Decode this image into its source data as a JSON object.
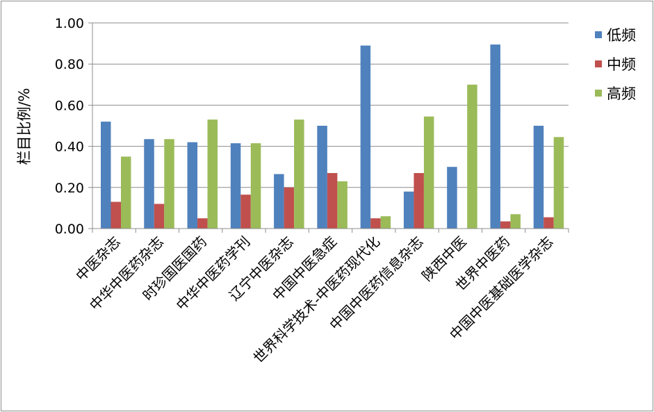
{
  "chart_data": {
    "type": "bar",
    "ylabel": "栏目比例/%",
    "ylim": [
      0,
      1
    ],
    "yticks": [
      "0.00",
      "0.20",
      "0.40",
      "0.60",
      "0.80",
      "1.00"
    ],
    "ytick_values": [
      0,
      0.2,
      0.4,
      0.6,
      0.8,
      1.0
    ],
    "grid": true,
    "legend_position": "top-right",
    "categories": [
      "中医杂志",
      "中华中医药杂志",
      "时珍国医国药",
      "中华中医药学刊",
      "辽宁中医杂志",
      "中国中医急症",
      "世界科学技术-中医药现代化",
      "中国中医药信息杂志",
      "陕西中医",
      "世界中医药",
      "中国中医基础医学杂志"
    ],
    "series": [
      {
        "name": "低频",
        "color": "#4f81bd",
        "values": [
          0.52,
          0.435,
          0.42,
          0.415,
          0.265,
          0.5,
          0.89,
          0.18,
          0.3,
          0.895,
          0.5
        ]
      },
      {
        "name": "中频",
        "color": "#c0504d",
        "values": [
          0.13,
          0.12,
          0.05,
          0.165,
          0.2,
          0.27,
          0.05,
          0.27,
          0.0,
          0.035,
          0.055
        ]
      },
      {
        "name": "高频",
        "color": "#9bbb59",
        "values": [
          0.35,
          0.435,
          0.53,
          0.415,
          0.53,
          0.23,
          0.06,
          0.545,
          0.7,
          0.07,
          0.445
        ]
      }
    ]
  }
}
